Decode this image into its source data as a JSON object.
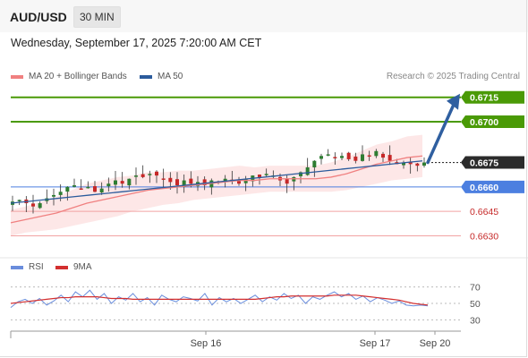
{
  "header": {
    "pair": "AUD/USD",
    "timeframe": "30 MIN",
    "datetime": "Wednesday, September 17, 2025 7:20:00 AM CET"
  },
  "legend": {
    "ma20": "MA 20 + Bollinger Bands",
    "ma50": "MA 50",
    "credit": "Research © 2025 Trading Central",
    "rsi": "RSI",
    "rsi_ma": "9MA"
  },
  "colors": {
    "ma20": "#f08080",
    "ma50": "#2b5b9c",
    "target": "#4a9a06",
    "support": "#4c7fe0",
    "support_light": "#f2a3a3",
    "up_candle": "#2e7d32",
    "down_candle": "#c62828",
    "arrow": "#2f5fa0",
    "band_fill": "#fde3e3",
    "rsi_line": "#6a8ddc",
    "rsi_ma": "#d32f2f"
  },
  "chart_data": [
    {
      "type": "candlestick",
      "title": "AUD/USD",
      "timeframe": "30 MIN",
      "x_labels": [
        "Sep 16",
        "Sep 17",
        "Sep 20"
      ],
      "ylim": [
        0.6622,
        0.6722
      ],
      "price_levels": [
        {
          "value": 0.6715,
          "label": "0.6715",
          "kind": "target"
        },
        {
          "value": 0.67,
          "label": "0.6700",
          "kind": "target"
        },
        {
          "value": 0.6675,
          "label": "0.6675",
          "kind": "current"
        },
        {
          "value": 0.666,
          "label": "0.6660",
          "kind": "support"
        },
        {
          "value": 0.6645,
          "label": "0.6645",
          "kind": "support-light"
        },
        {
          "value": 0.663,
          "label": "0.6630",
          "kind": "support-light"
        }
      ],
      "arrow": {
        "from": 0.6675,
        "to": 0.6715
      },
      "series": [
        {
          "name": "MA 20 + Bollinger Bands"
        },
        {
          "name": "MA 50"
        }
      ],
      "close_path": [
        0.6651,
        0.6652,
        0.665,
        0.6648,
        0.665,
        0.6653,
        0.6655,
        0.6657,
        0.666,
        0.6661,
        0.6659,
        0.666,
        0.6657,
        0.6659,
        0.6662,
        0.6664,
        0.6662,
        0.6665,
        0.6667,
        0.6666,
        0.6668,
        0.6667,
        0.6665,
        0.6663,
        0.6661,
        0.6664,
        0.6662,
        0.6663,
        0.6661,
        0.6664,
        0.6663,
        0.6665,
        0.6664,
        0.6662,
        0.6665,
        0.6667,
        0.6666,
        0.6668,
        0.6667,
        0.6664,
        0.6662,
        0.6666,
        0.6669,
        0.6672,
        0.6676,
        0.6679,
        0.668,
        0.6678,
        0.6679,
        0.6677,
        0.6676,
        0.668,
        0.6679,
        0.6682,
        0.6678,
        0.6676,
        0.6674,
        0.6675,
        0.6674,
        0.6673,
        0.6675
      ],
      "ma20": [
        0.6638,
        0.664,
        0.6642,
        0.6644,
        0.6647,
        0.665,
        0.6652,
        0.6654,
        0.6656,
        0.6658,
        0.6659,
        0.666,
        0.6661,
        0.6662,
        0.6663,
        0.6664,
        0.6664,
        0.6665,
        0.6665,
        0.6665,
        0.6665,
        0.6666,
        0.6668,
        0.6671,
        0.6674,
        0.6676,
        0.6678,
        0.6679
      ],
      "ma50": [
        0.665,
        0.6651,
        0.6652,
        0.6653,
        0.6654,
        0.6655,
        0.6656,
        0.6657,
        0.6658,
        0.6659,
        0.666,
        0.6661,
        0.6662,
        0.6663,
        0.6664,
        0.6665,
        0.6666,
        0.6667,
        0.6668,
        0.6669,
        0.667,
        0.6671,
        0.6672,
        0.6673,
        0.6674,
        0.6675,
        0.6676
      ]
    },
    {
      "type": "line",
      "title": "RSI",
      "y_ticks": [
        30,
        50,
        70
      ],
      "ylim": [
        25,
        75
      ],
      "series": [
        {
          "name": "RSI",
          "values": [
            45,
            52,
            55,
            50,
            56,
            48,
            53,
            60,
            52,
            64,
            58,
            66,
            55,
            62,
            50,
            58,
            54,
            62,
            52,
            57,
            48,
            60,
            55,
            52,
            58,
            56,
            53,
            62,
            48,
            57,
            52,
            56,
            50,
            55,
            60,
            52,
            58,
            54,
            62,
            56,
            60,
            50,
            58,
            55,
            60,
            64,
            58,
            62,
            55,
            59,
            52,
            57,
            54,
            50,
            53,
            48,
            47,
            48,
            47
          ]
        },
        {
          "name": "9MA",
          "values": [
            50,
            51,
            52,
            53,
            54,
            55,
            56,
            57,
            57,
            58,
            58,
            58,
            58,
            57,
            56,
            56,
            56,
            55,
            55,
            55,
            55,
            55,
            55,
            55,
            55,
            55,
            55,
            55,
            55,
            55,
            55,
            55,
            55,
            55,
            55,
            56,
            57,
            58,
            58,
            59,
            59,
            59,
            59,
            59,
            59,
            60,
            60,
            60,
            60,
            59,
            58,
            57,
            56,
            55,
            54,
            52,
            50,
            49,
            48
          ]
        }
      ]
    }
  ]
}
